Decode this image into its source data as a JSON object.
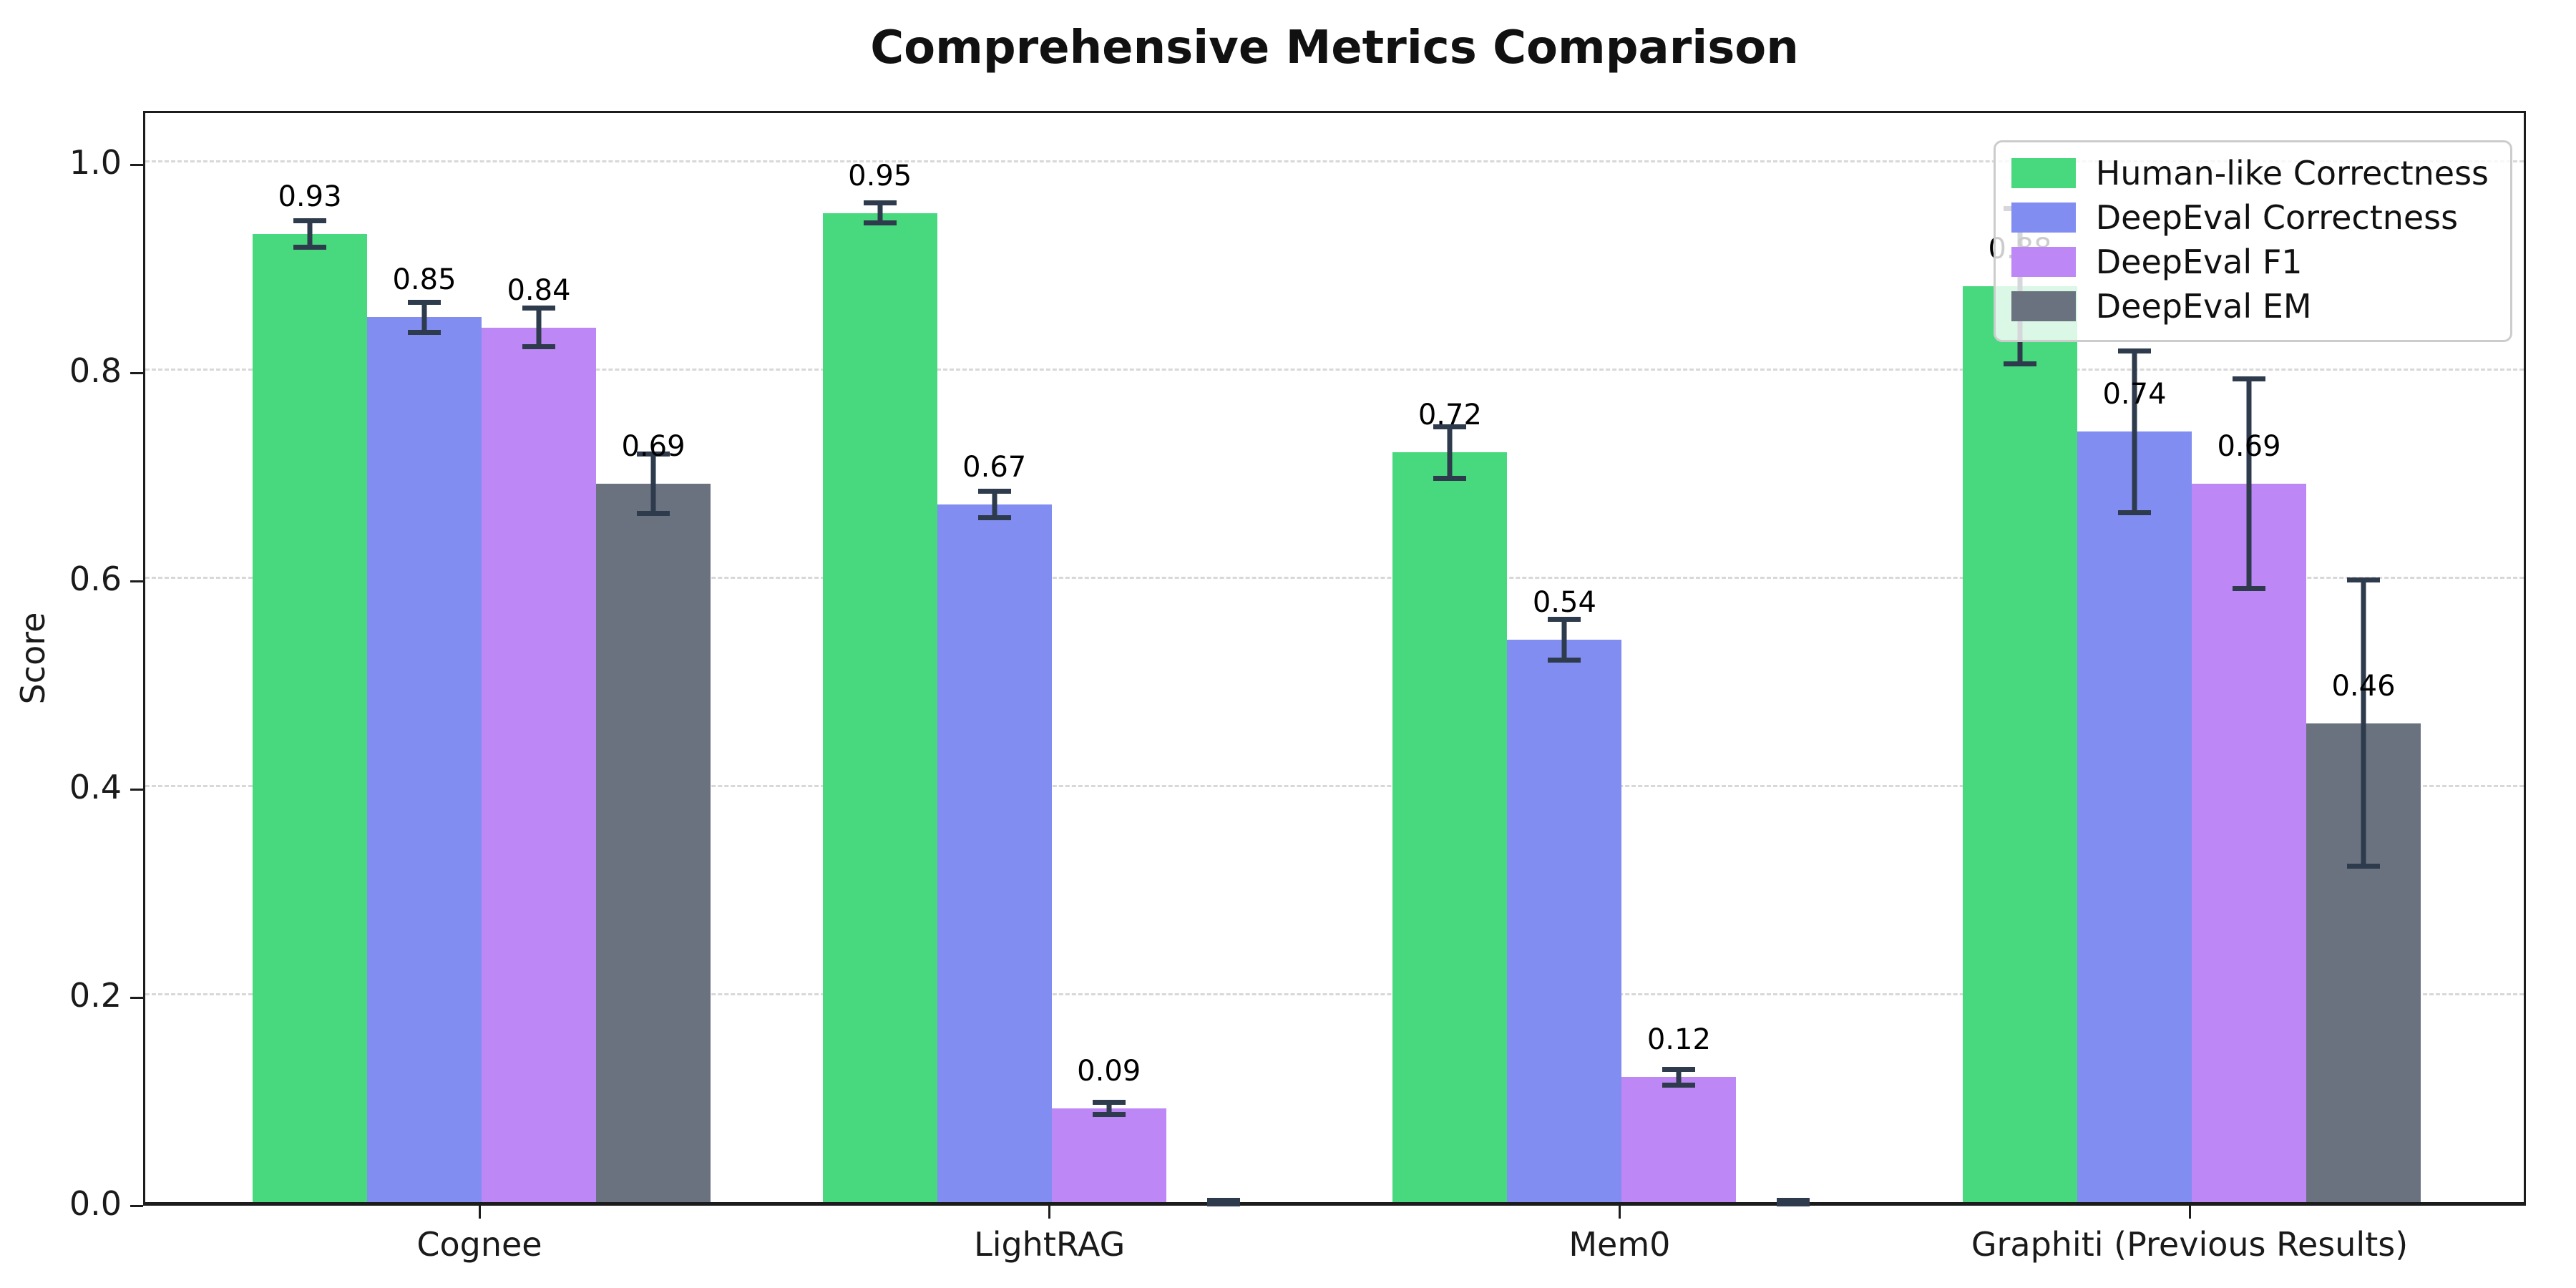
{
  "title": "Comprehensive Metrics Comparison",
  "chart_data": {
    "type": "bar",
    "title": "Comprehensive Metrics Comparison",
    "xlabel": "",
    "ylabel": "Score",
    "ylim": [
      0,
      1.05
    ],
    "yticks": [
      "0.0",
      "0.2",
      "0.4",
      "0.6",
      "0.8",
      "1.0"
    ],
    "grid": "horizontal dashed at 0.2 intervals",
    "legend_position": "upper right",
    "categories": [
      "Cognee",
      "LightRAG",
      "Mem0",
      "Graphiti (Previous Results)"
    ],
    "series": [
      {
        "name": "Human-like Correctness",
        "color": "#48d97e",
        "values": [
          0.93,
          0.95,
          0.72,
          0.88
        ],
        "errors": [
          0.015,
          0.012,
          0.027,
          0.077
        ],
        "labels": [
          "0.93",
          "0.95",
          "0.72",
          "0.88"
        ]
      },
      {
        "name": "DeepEval Correctness",
        "color": "#818df0",
        "values": [
          0.85,
          0.67,
          0.54,
          0.74
        ],
        "errors": [
          0.017,
          0.015,
          0.022,
          0.08
        ],
        "labels": [
          "0.85",
          "0.67",
          "0.54",
          "0.74"
        ]
      },
      {
        "name": "DeepEval F1",
        "color": "#bd88f5",
        "values": [
          0.84,
          0.09,
          0.12,
          0.69
        ],
        "errors": [
          0.021,
          0.008,
          0.01,
          0.103
        ],
        "labels": [
          "0.84",
          "0.09",
          "0.12",
          "0.69"
        ]
      },
      {
        "name": "DeepEval EM",
        "color": "#6a7280",
        "values": [
          0.69,
          0.0,
          0.0,
          0.46
        ],
        "errors": [
          0.031,
          0.004,
          0.004,
          0.14
        ],
        "labels": [
          "0.69",
          "",
          "",
          "0.46"
        ]
      }
    ],
    "style": {
      "error_color": "#2e3b4c",
      "grid_color": "#d8d8d8",
      "spine_color": "#1c1c1c",
      "legend_border": "#cccccc"
    }
  }
}
